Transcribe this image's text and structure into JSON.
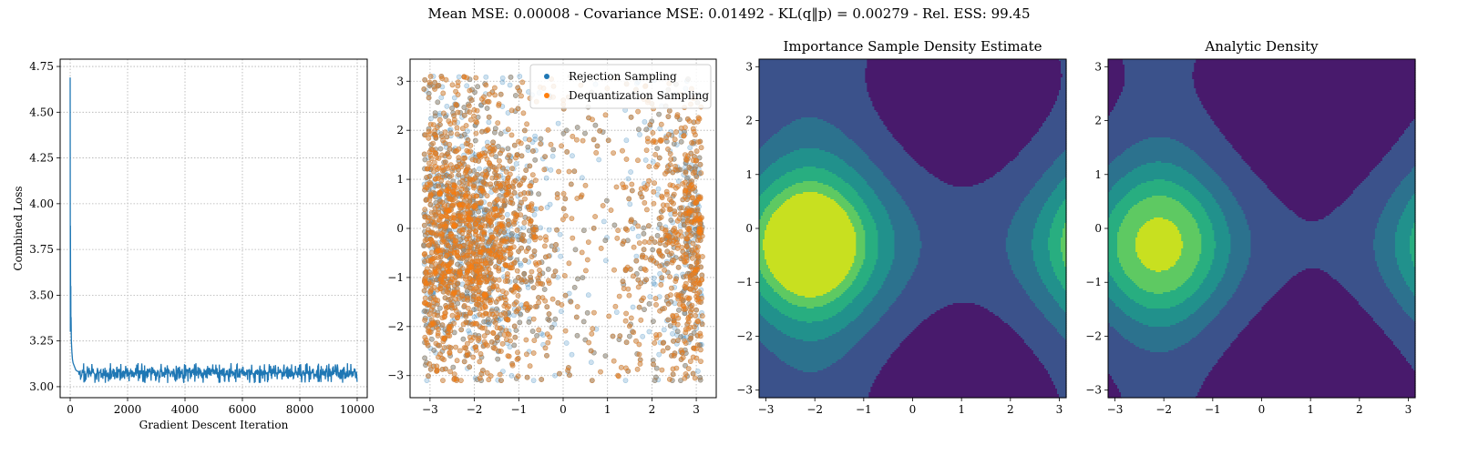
{
  "suptitle": "Mean MSE: 0.00008 - Covariance MSE: 0.01492 - KL(q‖p) = 0.00279 - Rel. ESS: 99.45",
  "colors": {
    "loss_line": "#1f77b4",
    "rejection": "#1f77b4",
    "dequant": "#ff7f0e",
    "viridis_levels": [
      "#481a6c",
      "#3b528b",
      "#2c728e",
      "#21918c",
      "#28ae80",
      "#5ec962",
      "#c8e020"
    ]
  },
  "chart_data": [
    {
      "type": "line",
      "title": "",
      "xlabel": "Gradient Descent Iteration",
      "ylabel": "Combined Loss",
      "xlim": [
        -350,
        10350
      ],
      "ylim": [
        2.94,
        4.79
      ],
      "xticks": [
        0,
        2000,
        4000,
        6000,
        8000,
        10000
      ],
      "yticks": [
        3.0,
        3.25,
        3.5,
        3.75,
        4.0,
        4.25,
        4.5,
        4.75
      ],
      "grid": true,
      "series": [
        {
          "x": [
            0,
            5,
            10,
            15,
            20,
            25,
            30,
            40,
            50,
            60,
            70,
            80,
            100,
            150,
            200,
            300,
            400,
            600,
            800,
            1000,
            2000,
            3000,
            4000,
            5000,
            6000,
            7000,
            8000,
            9000,
            10000
          ],
          "y": [
            4.69,
            3.3,
            3.88,
            3.45,
            3.55,
            3.3,
            3.38,
            3.25,
            3.22,
            3.19,
            3.17,
            3.15,
            3.13,
            3.11,
            3.09,
            3.08,
            3.08,
            3.075,
            3.075,
            3.075,
            3.075,
            3.075,
            3.075,
            3.075,
            3.075,
            3.075,
            3.075,
            3.075,
            3.075
          ],
          "noise_band": [
            3.02,
            3.13
          ]
        }
      ]
    },
    {
      "type": "scatter",
      "title": "",
      "xlim": [
        -3.45,
        3.45
      ],
      "ylim": [
        -3.45,
        3.45
      ],
      "xticks": [
        -3,
        -2,
        -1,
        0,
        1,
        2,
        3
      ],
      "yticks": [
        -3,
        -2,
        -1,
        0,
        1,
        2,
        3
      ],
      "grid": true,
      "legend_position": "top-right",
      "series": [
        {
          "name": "Rejection Sampling",
          "distribution": "von-Mises-like mixture",
          "modes": [
            [
              -2.0,
              -0.3
            ],
            [
              3.0,
              -0.3
            ]
          ],
          "n_points": 4000
        },
        {
          "name": "Dequantization Sampling",
          "distribution": "von-Mises-like mixture",
          "modes": [
            [
              -2.0,
              -0.3
            ],
            [
              3.0,
              -0.3
            ]
          ],
          "n_points": 4000
        }
      ]
    },
    {
      "type": "heatmap",
      "title": "Importance Sample Density Estimate",
      "xlim": [
        -3.14,
        3.14
      ],
      "ylim": [
        -3.14,
        3.14
      ],
      "xticks": [
        -3,
        -2,
        -1,
        0,
        1,
        2,
        3
      ],
      "yticks": [
        -3,
        -2,
        -1,
        0,
        1,
        2,
        3
      ],
      "mode_center": [
        -2.1,
        -0.3
      ],
      "levels": 6
    },
    {
      "type": "heatmap",
      "title": "Analytic Density",
      "xlim": [
        -3.14,
        3.14
      ],
      "ylim": [
        -3.14,
        3.14
      ],
      "xticks": [
        -3,
        -2,
        -1,
        0,
        1,
        2,
        3
      ],
      "yticks": [
        -3,
        -2,
        -1,
        0,
        1,
        2,
        3
      ],
      "mode_center": [
        -2.1,
        -0.3
      ],
      "levels": 7
    }
  ]
}
